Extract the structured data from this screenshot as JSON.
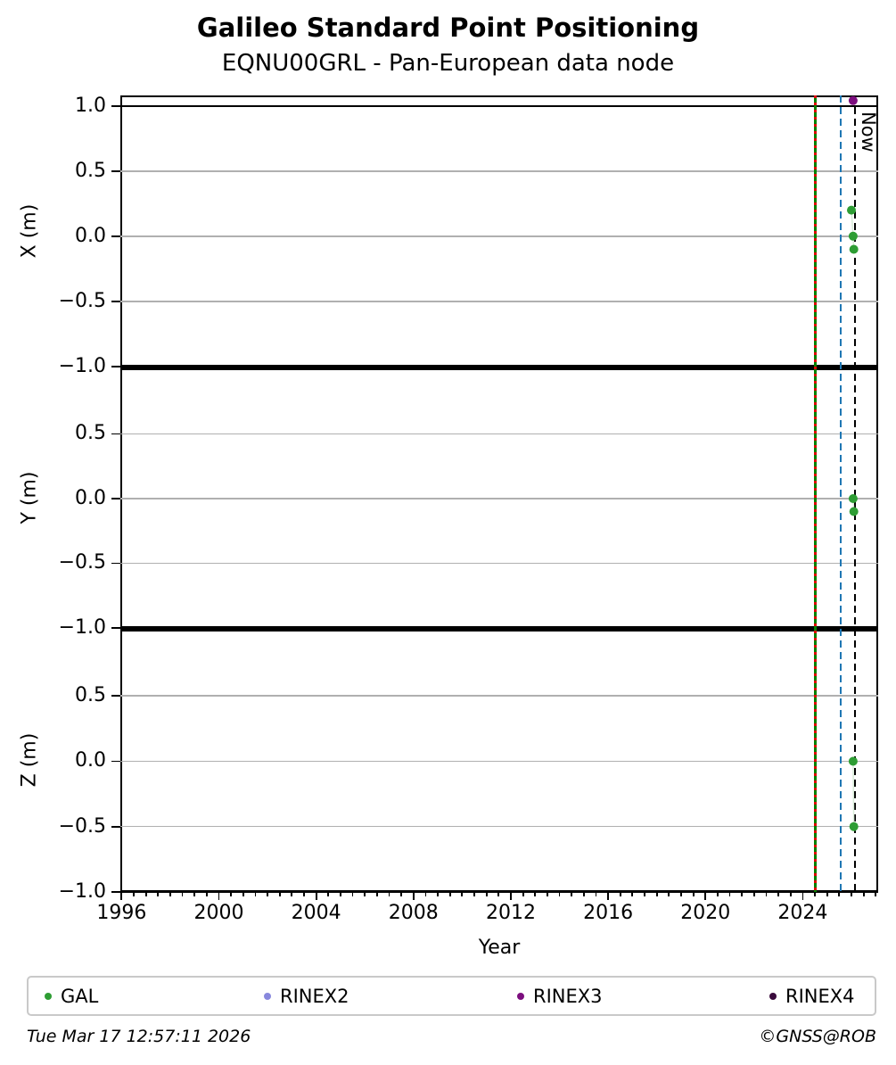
{
  "header": {
    "title": "Galileo Standard Point Positioning",
    "subtitle": "EQNU00GRL - Pan-European data node"
  },
  "footer": {
    "timestamp": "Tue Mar 17 12:57:11 2026",
    "credit": "©GNSS@ROB"
  },
  "chart_data": {
    "type": "scatter",
    "title": "Galileo Standard Point Positioning",
    "subtitle": "EQNU00GRL - Pan-European data node",
    "xlabel": "Year",
    "xlim": [
      1995.95,
      2027.1
    ],
    "xticks": [
      1996,
      2000,
      2004,
      2008,
      2012,
      2016,
      2020,
      2024
    ],
    "xtick_minor_step_years": 0.5,
    "grid": "horizontal",
    "hlines_black": [
      1.0,
      -1.0
    ],
    "subplots": [
      {
        "ylabel": "X (m)",
        "ylim": [
          -1.0,
          1.08
        ],
        "yticks": [
          1.0,
          0.5,
          0.0,
          -0.5,
          -1.0
        ],
        "series": [
          {
            "name": "GAL",
            "color": "#2e9d34",
            "connect": "#d9edd9",
            "points": [
              [
                2026.0,
                0.2
              ],
              [
                2026.07,
                0.0
              ],
              [
                2026.1,
                -0.1
              ]
            ]
          },
          {
            "name": "RINEX3",
            "color": "#7c0e7e",
            "points": [
              [
                2026.07,
                1.04
              ]
            ]
          }
        ]
      },
      {
        "ylabel": "Y (m)",
        "ylim": [
          -1.0,
          1.02
        ],
        "yticks": [
          0.5,
          0.0,
          -0.5,
          -1.0
        ],
        "series": [
          {
            "name": "GAL",
            "color": "#2e9d34",
            "connect": "#d9edd9",
            "points": [
              [
                2026.07,
                0.0
              ],
              [
                2026.1,
                -0.1
              ]
            ]
          }
        ]
      },
      {
        "ylabel": "Z (m)",
        "ylim": [
          -1.0,
          1.02
        ],
        "yticks": [
          0.5,
          0.0,
          -0.5,
          -1.0
        ],
        "series": [
          {
            "name": "GAL",
            "color": "#2e9d34",
            "connect": "#d9edd9",
            "points": [
              [
                2026.07,
                0.0
              ],
              [
                2026.1,
                -0.5
              ]
            ]
          }
        ]
      }
    ],
    "vlines": [
      {
        "name": "green-red-marker",
        "x": 2024.52,
        "style": "solid-green-red-dash",
        "colors": [
          "#008000",
          "#e00000"
        ]
      },
      {
        "name": "blue-marker",
        "x": 2025.55,
        "style": "dashed",
        "color": "#1f77b4"
      },
      {
        "name": "now-marker",
        "x": 2026.15,
        "style": "dashed",
        "color": "#000000",
        "label": "Now"
      }
    ],
    "legend": [
      {
        "label": "GAL",
        "color": "#2e9d34"
      },
      {
        "label": "RINEX2",
        "color": "#8888dd"
      },
      {
        "label": "RINEX3",
        "color": "#7c0e7e"
      },
      {
        "label": "RINEX4",
        "color": "#3a0b3c"
      }
    ],
    "legend_position": "bottom"
  }
}
